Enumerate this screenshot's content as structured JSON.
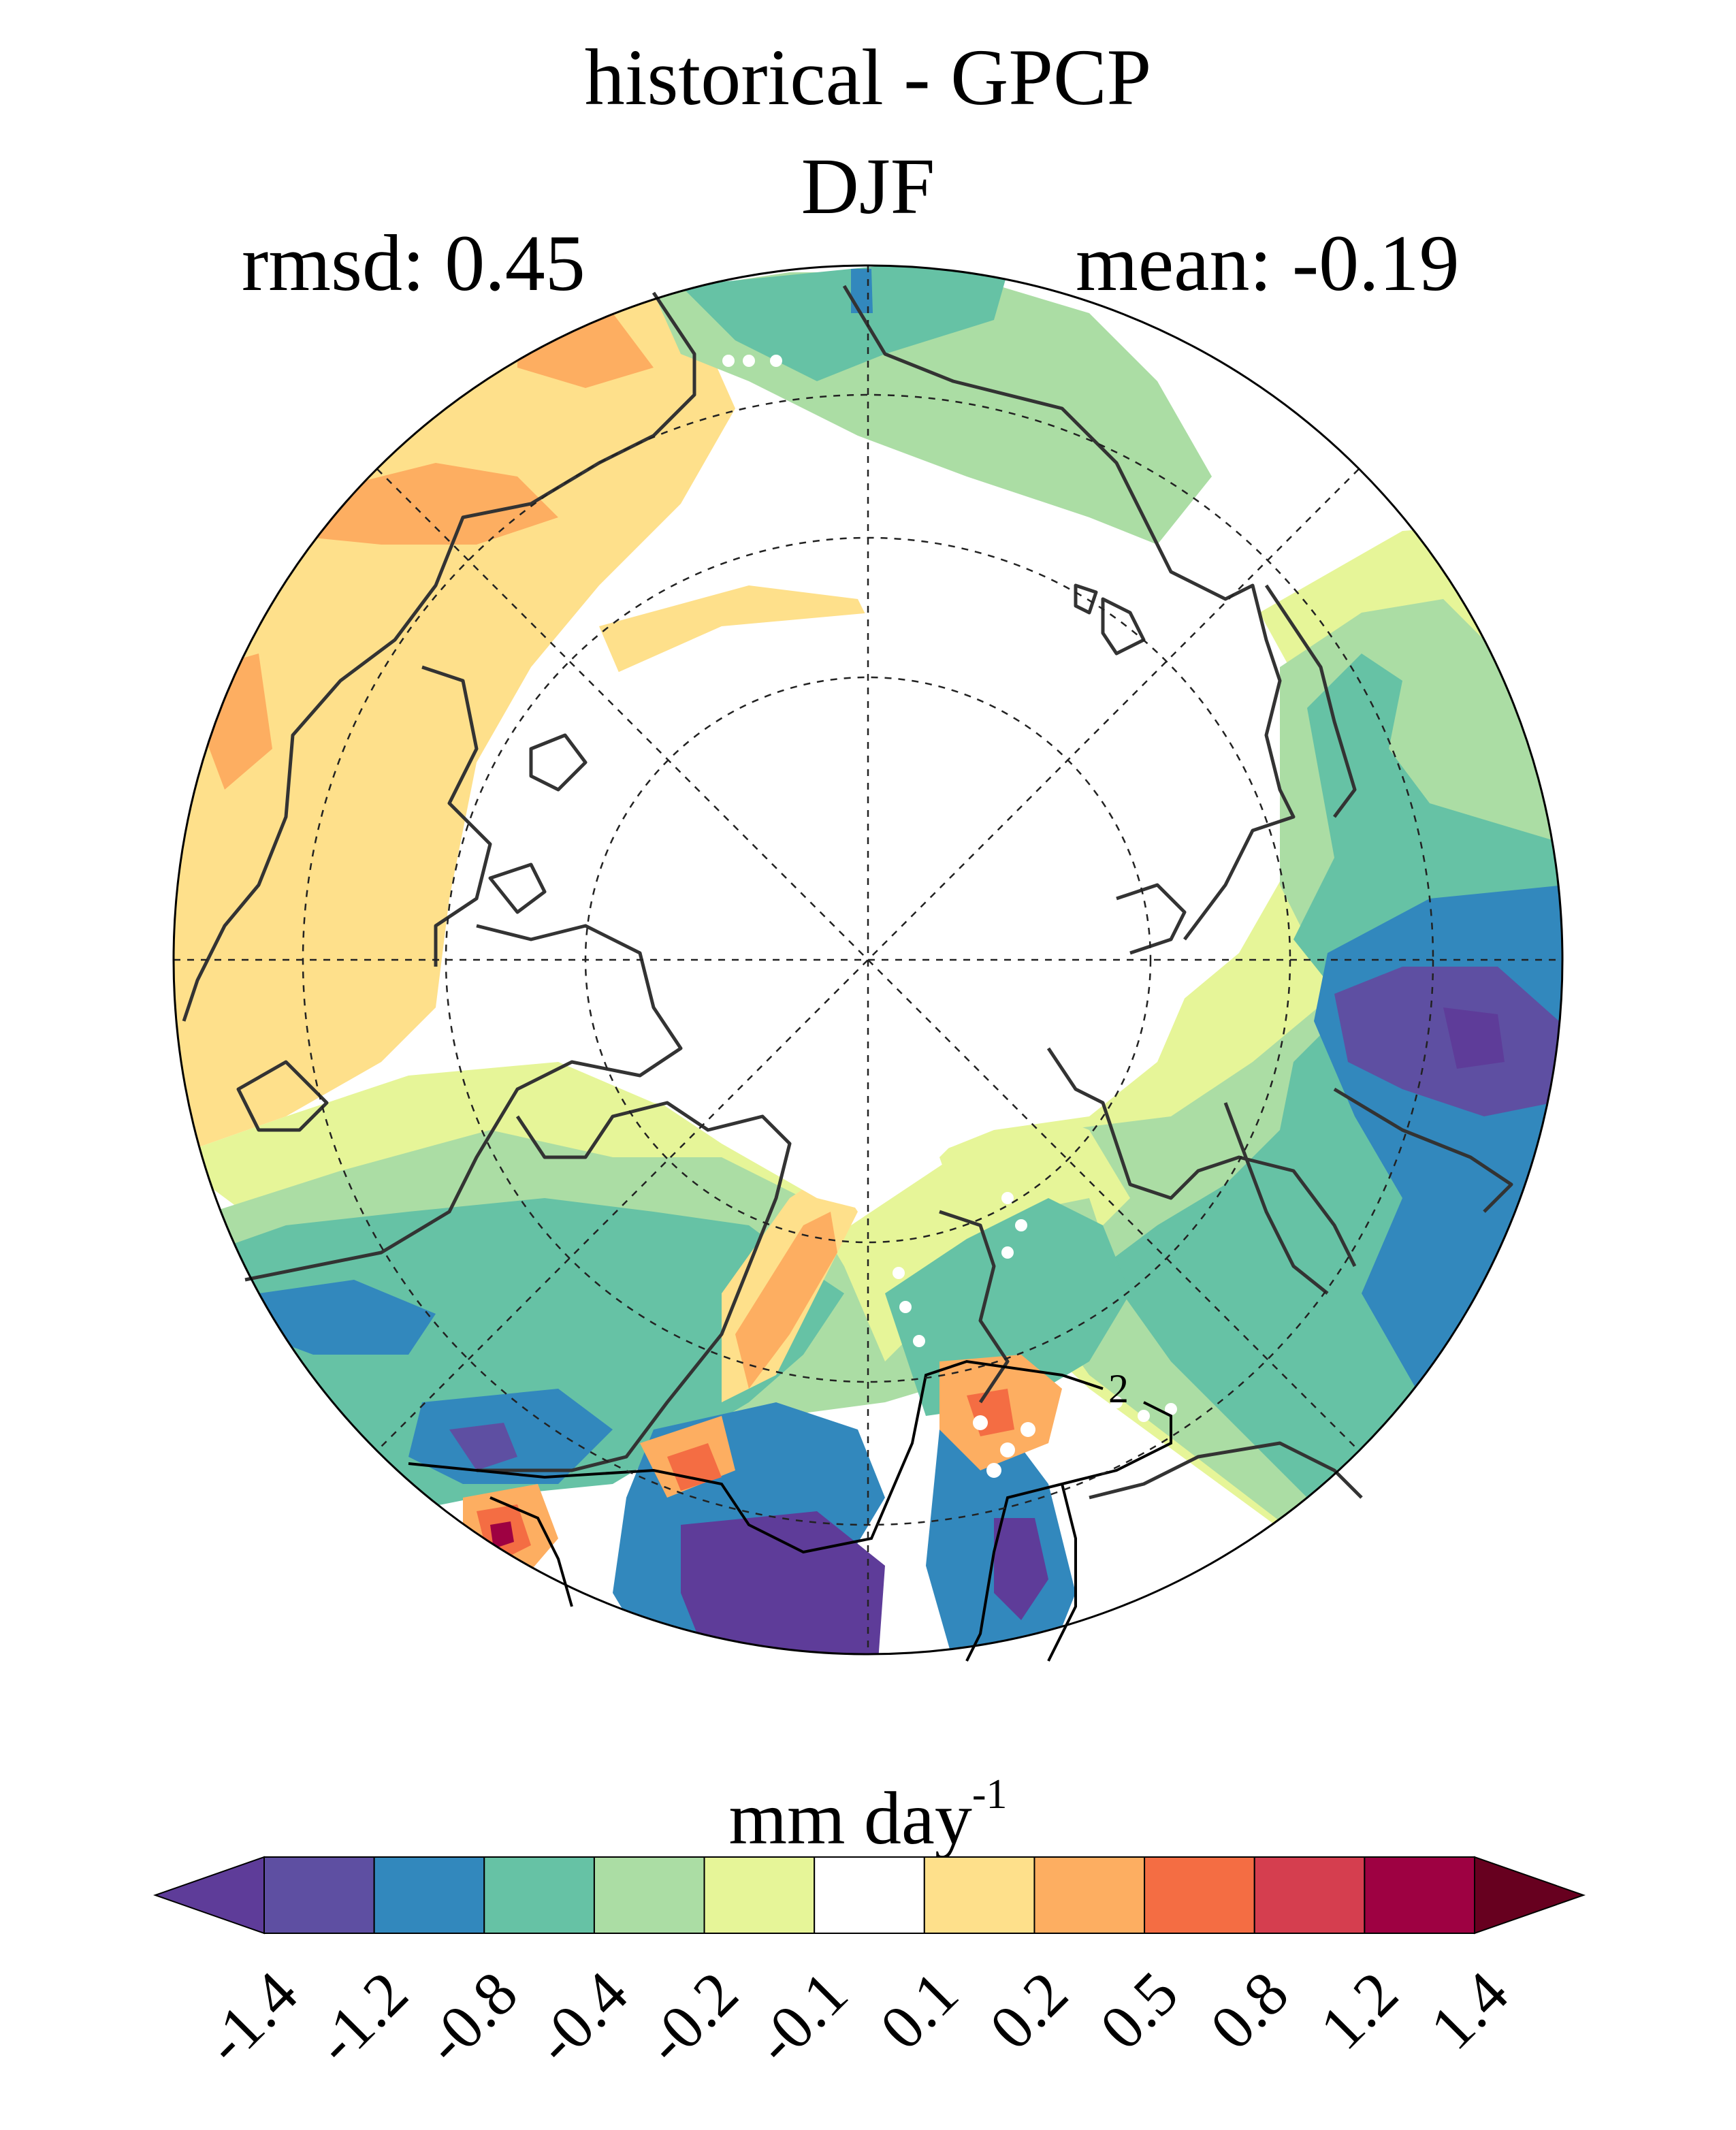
{
  "title": "historical - GPCP",
  "season": "DJF",
  "stats": {
    "rmsd_label": "rmsd: 0.45",
    "mean_label": "mean: -0.19"
  },
  "map": {
    "projection": "north polar stereographic",
    "field": "precipitation bias (historical minus GPCP)",
    "contour_label": "2",
    "stippling": "white dots mark points of significance",
    "coastline_color": "#333333"
  },
  "colorbar": {
    "units_base": "mm day",
    "units_exponent": "-1",
    "ticks": [
      "-1.4",
      "-1.2",
      "-0.8",
      "-0.4",
      "-0.2",
      "-0.1",
      "0.1",
      "0.2",
      "0.5",
      "0.8",
      "1.2",
      "1.4"
    ],
    "colors": [
      "#5e3c99",
      "#5e4fa2",
      "#3288bd",
      "#66c2a5",
      "#abdda4",
      "#e6f598",
      "#ffffff",
      "#fee08b",
      "#fdae61",
      "#f46d43",
      "#d53e4f",
      "#9e0142",
      "#67001f"
    ]
  }
}
